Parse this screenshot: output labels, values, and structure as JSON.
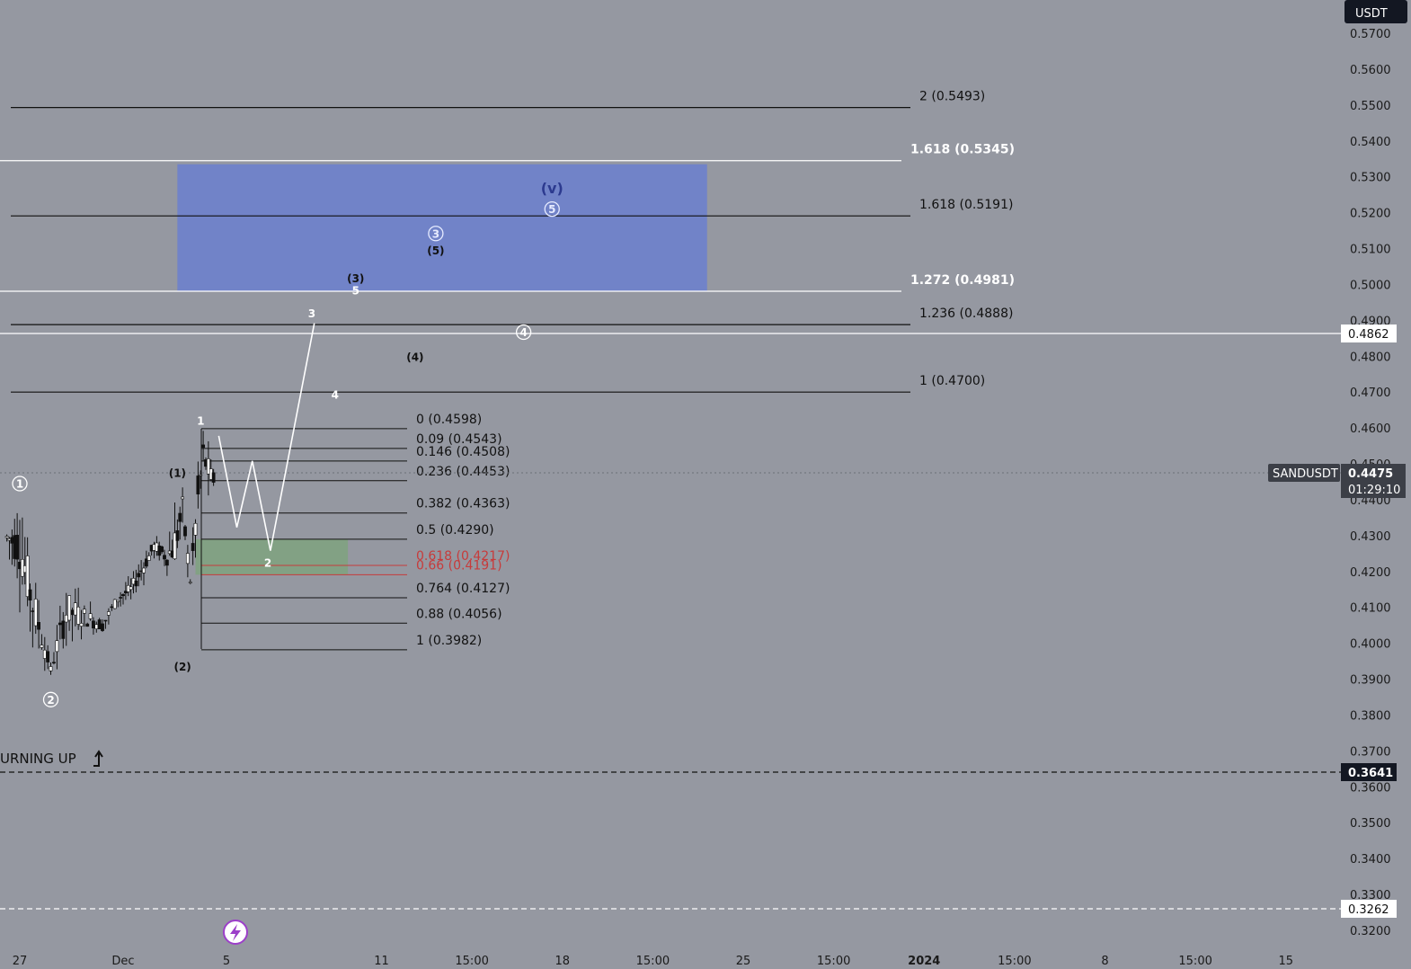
{
  "header": {
    "currency": "USDT",
    "symbol": "SANDUSDT"
  },
  "current": {
    "price": "0.4475",
    "timer": "01:29:10"
  },
  "levels_axis": {
    "white_line": "0.4862",
    "dashed_1": "0.3641",
    "dashed_2": "0.3262"
  },
  "annotation": {
    "turning_up": "URNING UP"
  },
  "chart_data": {
    "type": "candlestick",
    "y_ticks": [
      "0.5700",
      "0.5600",
      "0.5500",
      "0.5400",
      "0.5300",
      "0.5200",
      "0.5100",
      "0.5000",
      "0.4900",
      "0.4800",
      "0.4700",
      "0.4600",
      "0.4500",
      "0.4400",
      "0.4300",
      "0.4200",
      "0.4100",
      "0.4000",
      "0.3900",
      "0.3800",
      "0.3700",
      "0.3600",
      "0.3500",
      "0.3400",
      "0.3300",
      "0.3200"
    ],
    "x_ticks": [
      {
        "label": "27",
        "day": 0
      },
      {
        "label": "Dec",
        "day": 4
      },
      {
        "label": "5",
        "day": 8
      },
      {
        "label": "11",
        "day": 14
      },
      {
        "label": "15:00",
        "day": 17.5
      },
      {
        "label": "18",
        "day": 21
      },
      {
        "label": "15:00",
        "day": 24.5
      },
      {
        "label": "25",
        "day": 28
      },
      {
        "label": "15:00",
        "day": 31.5
      },
      {
        "label": "2024",
        "day": 35
      },
      {
        "label": "15:00",
        "day": 38.5
      },
      {
        "label": "8",
        "day": 42
      },
      {
        "label": "15:00",
        "day": 45.5
      },
      {
        "label": "15",
        "day": 49
      }
    ],
    "extension_levels": [
      {
        "text": "2 (0.5493)",
        "price": 0.5493,
        "style": "black"
      },
      {
        "text": "1.618 (0.5345)",
        "price": 0.5345,
        "style": "white"
      },
      {
        "text": "1.618 (0.5191)",
        "price": 0.5191,
        "style": "black"
      },
      {
        "text": "1.272 (0.4981)",
        "price": 0.4981,
        "style": "white"
      },
      {
        "text": "1.236 (0.4888)",
        "price": 0.4888,
        "style": "black"
      },
      {
        "text": "1 (0.4700)",
        "price": 0.47,
        "style": "black"
      }
    ],
    "retracement_levels": [
      {
        "text": "0 (0.4598)",
        "price": 0.4598,
        "style": "black"
      },
      {
        "text": "0.09 (0.4543)",
        "price": 0.4543,
        "style": "black"
      },
      {
        "text": "0.146 (0.4508)",
        "price": 0.4508,
        "style": "black"
      },
      {
        "text": "0.236 (0.4453)",
        "price": 0.4453,
        "style": "black"
      },
      {
        "text": "0.382 (0.4363)",
        "price": 0.4363,
        "style": "black"
      },
      {
        "text": "0.5 (0.4290)",
        "price": 0.429,
        "style": "black"
      },
      {
        "text": "0.618 (0.4217)",
        "price": 0.4217,
        "style": "red"
      },
      {
        "text": "0.66 (0.4191)",
        "price": 0.4191,
        "style": "red"
      },
      {
        "text": "0.764 (0.4127)",
        "price": 0.4127,
        "style": "black"
      },
      {
        "text": "0.88 (0.4056)",
        "price": 0.4056,
        "style": "black"
      },
      {
        "text": "1 (0.3982)",
        "price": 0.3982,
        "style": "black"
      }
    ],
    "wave_labels": [
      {
        "text": "1",
        "day": 0,
        "price": 0.4445,
        "circled": true,
        "color": "white"
      },
      {
        "text": "2",
        "day": 1.2,
        "price": 0.3843,
        "circled": true,
        "color": "white"
      },
      {
        "text": "(1)",
        "day": 6.1,
        "price": 0.4475,
        "circled": false,
        "color": "black"
      },
      {
        "text": "(2)",
        "day": 6.3,
        "price": 0.3935,
        "circled": false,
        "color": "black"
      },
      {
        "text": "1",
        "day": 7.0,
        "price": 0.462,
        "circled": false,
        "color": "white"
      },
      {
        "text": "2",
        "day": 9.6,
        "price": 0.4225,
        "circled": false,
        "color": "white"
      },
      {
        "text": "3",
        "day": 11.3,
        "price": 0.492,
        "circled": false,
        "color": "white"
      },
      {
        "text": "4",
        "day": 12.2,
        "price": 0.4693,
        "circled": false,
        "color": "white"
      },
      {
        "text": "5",
        "day": 13.0,
        "price": 0.4983,
        "circled": false,
        "color": "white"
      },
      {
        "text": "(3)",
        "day": 13.0,
        "price": 0.5018,
        "circled": false,
        "color": "black"
      },
      {
        "text": "(4)",
        "day": 15.3,
        "price": 0.4798,
        "circled": false,
        "color": "black"
      },
      {
        "text": "(5)",
        "day": 16.1,
        "price": 0.5095,
        "circled": false,
        "color": "black"
      },
      {
        "text": "3",
        "day": 16.1,
        "price": 0.5142,
        "circled": true,
        "color": "light"
      },
      {
        "text": "4",
        "day": 19.5,
        "price": 0.4867,
        "circled": true,
        "color": "white"
      },
      {
        "text": "(v)",
        "day": 20.6,
        "price": 0.5265,
        "circled": false,
        "color": "blue"
      },
      {
        "text": "5",
        "day": 20.6,
        "price": 0.521,
        "circled": true,
        "color": "light"
      }
    ],
    "target_zone": {
      "price_top": 0.5335,
      "price_bottom": 0.4981,
      "day_start": 6.1,
      "day_end": 26.6
    },
    "buy_zone": {
      "price_top": 0.429,
      "price_bottom": 0.4191,
      "day_start": 6.8,
      "day_end": 12.7
    },
    "projection_path": [
      [
        7.7,
        0.4578
      ],
      [
        8.4,
        0.4323
      ],
      [
        9.0,
        0.4508
      ],
      [
        9.7,
        0.4258
      ],
      [
        11.4,
        0.4892
      ]
    ],
    "ohlc_segments": [
      [
        -0.5,
        0.434,
        0.425
      ],
      [
        0,
        0.44,
        0.415
      ],
      [
        0.5,
        0.422,
        0.4
      ],
      [
        1.2,
        0.395,
        0.39
      ],
      [
        1.8,
        0.418,
        0.4
      ],
      [
        2.5,
        0.412,
        0.403
      ],
      [
        3.2,
        0.408,
        0.402
      ],
      [
        3.8,
        0.415,
        0.41
      ],
      [
        4.3,
        0.418,
        0.412
      ],
      [
        4.8,
        0.425,
        0.418
      ],
      [
        5.2,
        0.43,
        0.424
      ],
      [
        5.7,
        0.428,
        0.42
      ],
      [
        6.0,
        0.438,
        0.418
      ],
      [
        6.3,
        0.444,
        0.43
      ],
      [
        6.6,
        0.42,
        0.415
      ],
      [
        6.9,
        0.452,
        0.428
      ],
      [
        7.1,
        0.4598,
        0.445
      ],
      [
        7.4,
        0.452,
        0.44
      ],
      [
        7.6,
        0.4475,
        0.443
      ]
    ]
  }
}
